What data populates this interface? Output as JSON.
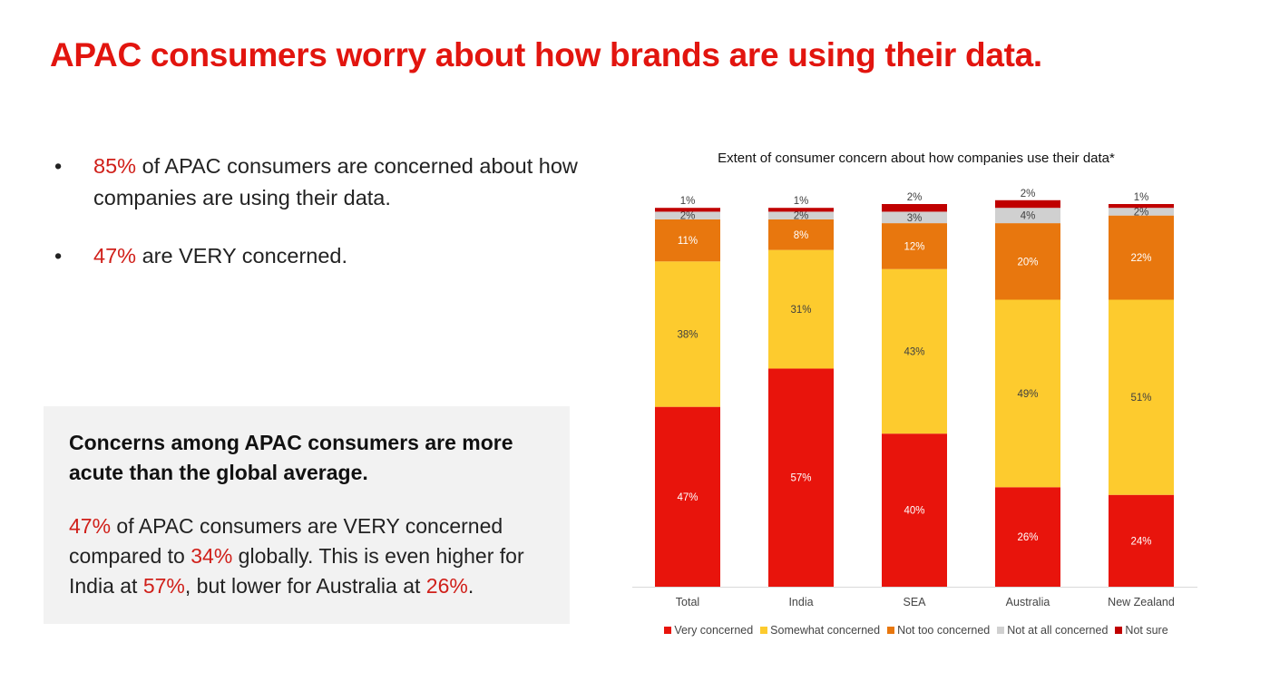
{
  "title": "APAC consumers worry about how brands are using their data.",
  "bullets": [
    {
      "marker": "•",
      "highlight": "85%",
      "text": " of APAC consumers are concerned about how companies are using their data."
    },
    {
      "marker": "•",
      "highlight": "47%",
      "text": " are VERY concerned."
    }
  ],
  "panel": {
    "heading": "Concerns among APAC consumers are more acute than the global average.",
    "parts": [
      {
        "text": "47%",
        "red": true
      },
      {
        "text": " of APAC consumers are VERY concerned compared to ",
        "red": false
      },
      {
        "text": "34%",
        "red": true
      },
      {
        "text": " globally. This is even higher for India at ",
        "red": false
      },
      {
        "text": "57%",
        "red": true
      },
      {
        "text": ", but lower for Australia at ",
        "red": false
      },
      {
        "text": "26%",
        "red": true
      },
      {
        "text": ".",
        "red": false
      }
    ]
  },
  "chart_data": {
    "type": "bar",
    "stacked": true,
    "title": "Extent of consumer concern about how companies use their data*",
    "categories": [
      "Total",
      "India",
      "SEA",
      "Australia",
      "New Zealand"
    ],
    "series": [
      {
        "name": "Very concerned",
        "color": "#e8140c",
        "values": [
          47,
          57,
          40,
          26,
          24
        ]
      },
      {
        "name": "Somewhat concerned",
        "color": "#fdcb2e",
        "values": [
          38,
          31,
          43,
          49,
          51
        ]
      },
      {
        "name": "Not too concerned",
        "color": "#e8770e",
        "values": [
          11,
          8,
          12,
          20,
          22
        ]
      },
      {
        "name": "Not at all concerned",
        "color": "#d0d0d0",
        "values": [
          2,
          2,
          3,
          4,
          2
        ]
      },
      {
        "name": "Not sure",
        "color": "#c00000",
        "values": [
          1,
          1,
          2,
          2,
          1
        ]
      }
    ],
    "value_suffix": "%",
    "legend_position": "bottom",
    "grid": false
  }
}
